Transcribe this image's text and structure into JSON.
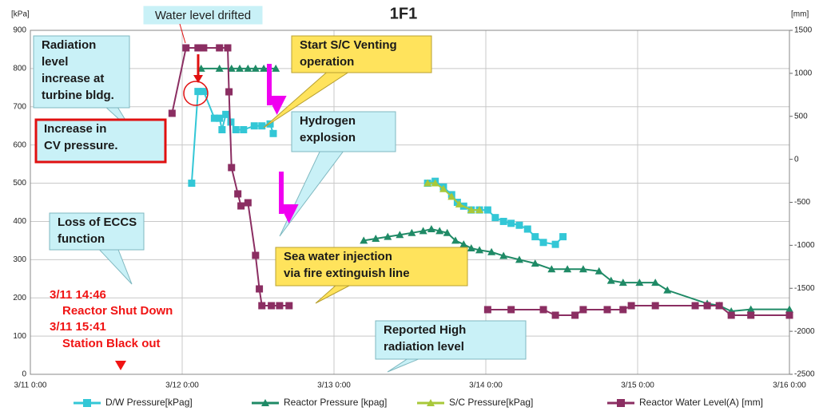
{
  "chart_data": {
    "type": "line",
    "title": "1F1",
    "y_label": "[kPa]",
    "y2_label": "[mm]",
    "xlim": [
      0,
      120
    ],
    "xticks": [
      {
        "value": 0,
        "label": "3/11 0:00"
      },
      {
        "value": 24,
        "label": "3/12 0:00"
      },
      {
        "value": 48,
        "label": "3/13 0:00"
      },
      {
        "value": 72,
        "label": "3/14 0:00"
      },
      {
        "value": 96,
        "label": "3/15 0:00"
      },
      {
        "value": 120,
        "label": "3/16 0:00"
      }
    ],
    "ylim": [
      0,
      900
    ],
    "yticks": [
      0,
      100,
      200,
      300,
      400,
      500,
      600,
      700,
      800,
      900
    ],
    "y2lim": [
      -2500,
      1500
    ],
    "y2ticks": [
      -2500,
      -2000,
      -1500,
      -1000,
      -500,
      0,
      500,
      1000,
      1500
    ],
    "grid": true,
    "legend": "bottom",
    "series": [
      {
        "name": "D/W Pressure[kPag]",
        "color": "#33c7d6",
        "marker": "square",
        "x": [
          25.5,
          26.5,
          27.4,
          29.1,
          29.9,
          30.3,
          30.9,
          31.7,
          32.5,
          33.7,
          35.4,
          36.6,
          37.9,
          38.4,
          50,
          62.8,
          64,
          65.3,
          66.6,
          67.5,
          68.5,
          69.7,
          71,
          72.3,
          73.5,
          74.8,
          76,
          77.3,
          78.6,
          79.8,
          81.1,
          83,
          84.2
        ],
        "values": [
          500,
          740,
          740,
          670,
          670,
          640,
          680,
          660,
          640,
          640,
          650,
          650,
          655,
          630,
          null,
          500,
          505,
          490,
          470,
          450,
          440,
          430,
          430,
          430,
          410,
          400,
          395,
          390,
          380,
          360,
          345,
          340,
          360
        ]
      },
      {
        "name": "Reactor Pressure [kpag]",
        "color": "#1f8a66",
        "marker": "triangle",
        "x": [
          27,
          29.9,
          31.8,
          33.1,
          34.4,
          35.6,
          36.9,
          38.8,
          45,
          52.7,
          54.6,
          56.5,
          58.4,
          60.3,
          62.1,
          63.4,
          64.7,
          65.9,
          67.2,
          68.5,
          69.7,
          71,
          72.9,
          74.8,
          77.3,
          79.8,
          82.4,
          84.9,
          87.4,
          89.9,
          91.8,
          93.7,
          96.3,
          98.8,
          100.7,
          107,
          108.9,
          110.8,
          113.9,
          120
        ],
        "values": [
          800,
          800,
          800,
          800,
          800,
          800,
          800,
          800,
          null,
          350,
          355,
          360,
          365,
          370,
          375,
          380,
          375,
          370,
          350,
          340,
          330,
          325,
          320,
          310,
          300,
          290,
          275,
          275,
          275,
          270,
          245,
          240,
          240,
          240,
          220,
          185,
          180,
          165,
          170,
          170
        ]
      },
      {
        "name": "S/C Pressure[kPag]",
        "color": "#a8c83a",
        "marker": "triangle",
        "x": [
          62.8,
          64,
          65.3,
          66.6,
          67.8,
          69.7,
          71
        ],
        "values": [
          500,
          500,
          485,
          465,
          445,
          430,
          430
        ]
      },
      {
        "name": "Reactor Water Level(A) [mm]",
        "color": "#8b2e62",
        "marker": "square",
        "axis": "y2",
        "x": [
          22.4,
          24.6,
          26.5,
          27.4,
          29.9,
          31.2,
          31.4,
          31.8,
          32.8,
          33.3,
          34.4,
          35.6,
          36.2,
          36.6,
          38.1,
          39.4,
          40.9,
          55,
          72.3,
          76,
          81.1,
          83,
          86.1,
          87.4,
          91.2,
          93.7,
          95,
          98.8,
          105.1,
          107,
          108.9,
          110.8,
          113.9,
          120
        ],
        "values": [
          535,
          1296,
          1296,
          1296,
          1296,
          1296,
          785,
          -96,
          -402,
          -542,
          -505,
          -1117,
          -1507,
          -1702,
          -1702,
          -1702,
          -1702,
          null,
          -1748,
          -1748,
          -1748,
          -1813,
          -1813,
          -1748,
          -1748,
          -1748,
          -1702,
          -1702,
          -1702,
          -1702,
          -1702,
          -1813,
          -1813,
          -1813
        ]
      }
    ],
    "annotations": [
      {
        "lines": [
          "Radiation",
          "level",
          "increase at",
          "turbine bldg."
        ]
      },
      {
        "lines": [
          "Start S/C Venting",
          "operation"
        ]
      },
      {
        "lines": [
          "Increase in",
          "CV pressure."
        ]
      },
      {
        "lines": [
          "Hydrogen",
          "explosion"
        ]
      },
      {
        "lines": [
          "Loss of ECCS",
          "function"
        ]
      },
      {
        "lines": [
          "Sea water injection",
          "via fire extinguish line"
        ]
      },
      {
        "lines": [
          "Reported High",
          "radiation level"
        ]
      },
      {
        "lines": [
          "Water level drifted"
        ]
      }
    ],
    "event_notes": [
      "3/11 14:46",
      "Reactor Shut Down",
      "3/11 15:41",
      "Station Black out"
    ]
  }
}
